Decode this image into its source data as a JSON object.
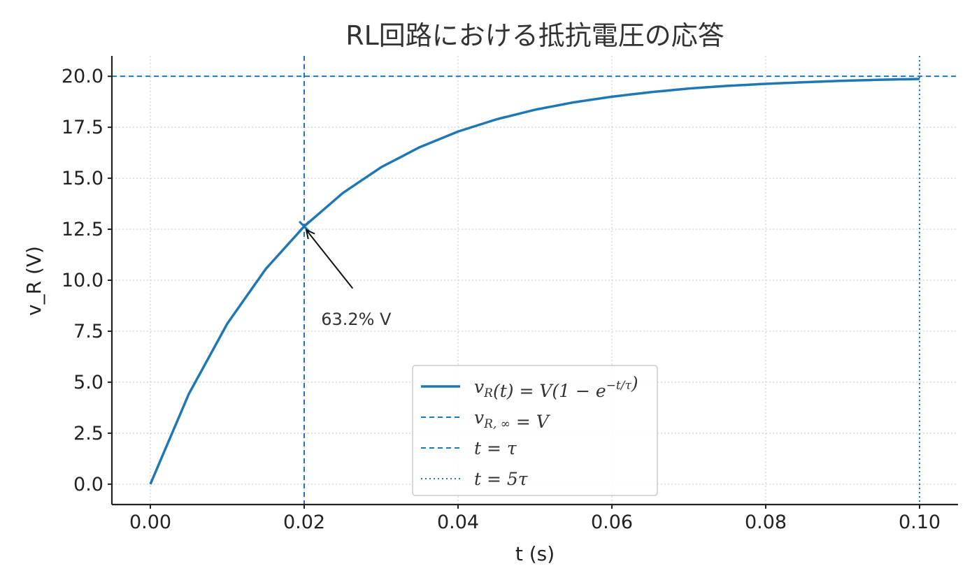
{
  "chart_data": {
    "type": "line",
    "title": "RL回路における抵抗電圧の応答",
    "xlabel": "t (s)",
    "ylabel": "v_R (V)",
    "xlim": [
      -0.005,
      0.105
    ],
    "ylim": [
      -1.0,
      21.0
    ],
    "xticks": [
      0.0,
      0.02,
      0.04,
      0.06,
      0.08,
      0.1
    ],
    "xtick_labels": [
      "0.00",
      "0.02",
      "0.04",
      "0.06",
      "0.08",
      "0.10"
    ],
    "yticks": [
      0.0,
      2.5,
      5.0,
      7.5,
      10.0,
      12.5,
      15.0,
      17.5,
      20.0
    ],
    "ytick_labels": [
      "0.0",
      "2.5",
      "5.0",
      "7.5",
      "10.0",
      "12.5",
      "15.0",
      "17.5",
      "20.0"
    ],
    "grid": true,
    "legend_position": "lower-center",
    "series": [
      {
        "name": "v_R(t) = V(1 − e^(−t/τ))",
        "style": "solid",
        "color": "#1f77b4",
        "x": [
          0.0,
          0.005,
          0.01,
          0.015,
          0.02,
          0.025,
          0.03,
          0.035,
          0.04,
          0.045,
          0.05,
          0.055,
          0.06,
          0.065,
          0.07,
          0.075,
          0.08,
          0.085,
          0.09,
          0.095,
          0.1
        ],
        "y": [
          0.0,
          4.42,
          7.87,
          10.55,
          12.64,
          14.27,
          15.54,
          16.52,
          17.29,
          17.89,
          18.36,
          18.72,
          19.0,
          19.22,
          19.4,
          19.53,
          19.63,
          19.71,
          19.78,
          19.83,
          19.87
        ]
      }
    ],
    "reference_lines": [
      {
        "name": "v_R,∞ = V",
        "orientation": "horizontal",
        "value": 20.0,
        "style": "dashed",
        "color": "#1f77b4"
      },
      {
        "name": "t = τ",
        "orientation": "vertical",
        "value": 0.02,
        "style": "dashed",
        "color": "#1f77b4"
      },
      {
        "name": "t = 5τ",
        "orientation": "vertical",
        "value": 0.1,
        "style": "dotted",
        "color": "#1f77b4"
      }
    ],
    "marker": {
      "x": 0.02,
      "y": 12.64,
      "symbol": "x",
      "color": "#1f77b4"
    },
    "annotation": {
      "text": "63.2% V",
      "point_x": 0.02,
      "point_y": 12.64,
      "text_x": 0.0222,
      "text_y": 7.8
    },
    "legend": [
      {
        "prefix": "v",
        "sub": "R",
        "mid": "(t) = V(1 − e",
        "sup": "−t/τ",
        "suffix": ")",
        "style": "solid"
      },
      {
        "prefix": "v",
        "sub": "R, ∞",
        "mid": " = V",
        "sup": "",
        "suffix": "",
        "style": "dashed"
      },
      {
        "prefix": "t = τ",
        "sub": "",
        "mid": "",
        "sup": "",
        "suffix": "",
        "style": "dashed"
      },
      {
        "prefix": "t = 5τ",
        "sub": "",
        "mid": "",
        "sup": "",
        "suffix": "",
        "style": "dotted"
      }
    ]
  }
}
